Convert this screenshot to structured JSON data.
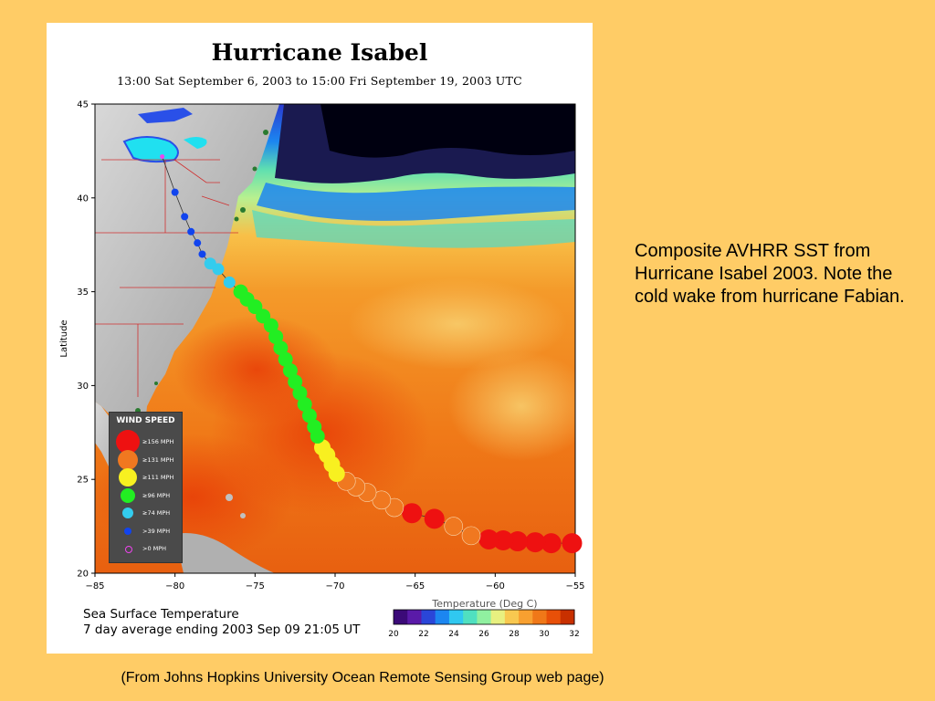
{
  "figure": {
    "title": "Hurricane Isabel",
    "subtitle": "13:00 Sat September  6, 2003 to 15:00 Fri September 19, 2003  UTC",
    "ylabel": "Latitude",
    "caption_line1": "Sea Surface Temperature",
    "caption_line2": "7 day average ending 2003 Sep 09 21:05 UT",
    "colorbar_label": "Temperature (Deg C)",
    "colorbar_ticks": [
      "20",
      "22",
      "24",
      "26",
      "28",
      "30",
      "32"
    ],
    "colorbar_colors": [
      "#3b0a78",
      "#5a1aa8",
      "#2a46d8",
      "#1c86f0",
      "#30c8f0",
      "#50e0c0",
      "#90f0a0",
      "#e8f080",
      "#f8c850",
      "#f8a030",
      "#f07818",
      "#e85008",
      "#c83000"
    ],
    "lat_ticks": [
      "45",
      "40",
      "35",
      "30",
      "25",
      "20"
    ],
    "lon_ticks": [
      "-85",
      "-80",
      "-75",
      "-70",
      "-65",
      "-60",
      "-55"
    ]
  },
  "legend": {
    "title": "WIND SPEED",
    "items": [
      {
        "label": "≥156 MPH",
        "color": "#ee1111"
      },
      {
        "label": "≥131 MPH",
        "color": "#f07820"
      },
      {
        "label": "≥111 MPH",
        "color": "#f8f020"
      },
      {
        "label": "≥96 MPH",
        "color": "#22ee22"
      },
      {
        "label": "≥74 MPH",
        "color": "#33ccee"
      },
      {
        "label": ">39 MPH",
        "color": "#1144ee"
      },
      {
        "label": ">0 MPH",
        "color": "#ee44ee"
      }
    ]
  },
  "track": [
    {
      "lon": -55.2,
      "lat": 21.6,
      "cat": 0
    },
    {
      "lon": -56.5,
      "lat": 21.6,
      "cat": 0
    },
    {
      "lon": -57.5,
      "lat": 21.65,
      "cat": 0
    },
    {
      "lon": -58.6,
      "lat": 21.7,
      "cat": 0
    },
    {
      "lon": -59.5,
      "lat": 21.75,
      "cat": 0
    },
    {
      "lon": -60.4,
      "lat": 21.8,
      "cat": 0
    },
    {
      "lon": -61.5,
      "lat": 22.0,
      "cat": 1
    },
    {
      "lon": -62.6,
      "lat": 22.5,
      "cat": 1
    },
    {
      "lon": -63.8,
      "lat": 22.9,
      "cat": 0
    },
    {
      "lon": -65.2,
      "lat": 23.2,
      "cat": 0
    },
    {
      "lon": -66.3,
      "lat": 23.5,
      "cat": 1
    },
    {
      "lon": -67.1,
      "lat": 23.9,
      "cat": 1
    },
    {
      "lon": -68.0,
      "lat": 24.3,
      "cat": 1
    },
    {
      "lon": -68.7,
      "lat": 24.6,
      "cat": 1
    },
    {
      "lon": -69.3,
      "lat": 24.9,
      "cat": 1
    },
    {
      "lon": -69.9,
      "lat": 25.3,
      "cat": 2
    },
    {
      "lon": -70.2,
      "lat": 25.8,
      "cat": 2
    },
    {
      "lon": -70.5,
      "lat": 26.3,
      "cat": 2
    },
    {
      "lon": -70.8,
      "lat": 26.7,
      "cat": 2
    },
    {
      "lon": -71.1,
      "lat": 27.3,
      "cat": 3
    },
    {
      "lon": -71.3,
      "lat": 27.8,
      "cat": 3
    },
    {
      "lon": -71.6,
      "lat": 28.4,
      "cat": 3
    },
    {
      "lon": -71.9,
      "lat": 29.0,
      "cat": 3
    },
    {
      "lon": -72.2,
      "lat": 29.6,
      "cat": 3
    },
    {
      "lon": -72.5,
      "lat": 30.2,
      "cat": 3
    },
    {
      "lon": -72.8,
      "lat": 30.8,
      "cat": 3
    },
    {
      "lon": -73.1,
      "lat": 31.4,
      "cat": 3
    },
    {
      "lon": -73.4,
      "lat": 32.0,
      "cat": 3
    },
    {
      "lon": -73.7,
      "lat": 32.6,
      "cat": 3
    },
    {
      "lon": -74.0,
      "lat": 33.2,
      "cat": 3
    },
    {
      "lon": -74.5,
      "lat": 33.7,
      "cat": 3
    },
    {
      "lon": -75.0,
      "lat": 34.2,
      "cat": 3
    },
    {
      "lon": -75.5,
      "lat": 34.6,
      "cat": 3
    },
    {
      "lon": -75.9,
      "lat": 35.0,
      "cat": 3
    },
    {
      "lon": -76.6,
      "lat": 35.5,
      "cat": 4
    },
    {
      "lon": -77.3,
      "lat": 36.2,
      "cat": 4
    },
    {
      "lon": -77.8,
      "lat": 36.5,
      "cat": 4
    },
    {
      "lon": -78.3,
      "lat": 37.0,
      "cat": 5
    },
    {
      "lon": -78.6,
      "lat": 37.6,
      "cat": 5
    },
    {
      "lon": -79.0,
      "lat": 38.2,
      "cat": 5
    },
    {
      "lon": -79.4,
      "lat": 39.0,
      "cat": 5
    },
    {
      "lon": -80.0,
      "lat": 40.3,
      "cat": 5
    },
    {
      "lon": -80.8,
      "lat": 42.2,
      "cat": 6
    }
  ],
  "note": "Composite AVHRR SST from Hurricane Isabel 2003. Note the cold wake from hurricane Fabian.",
  "source": "(From Johns Hopkins University Ocean Remote Sensing Group web page)"
}
